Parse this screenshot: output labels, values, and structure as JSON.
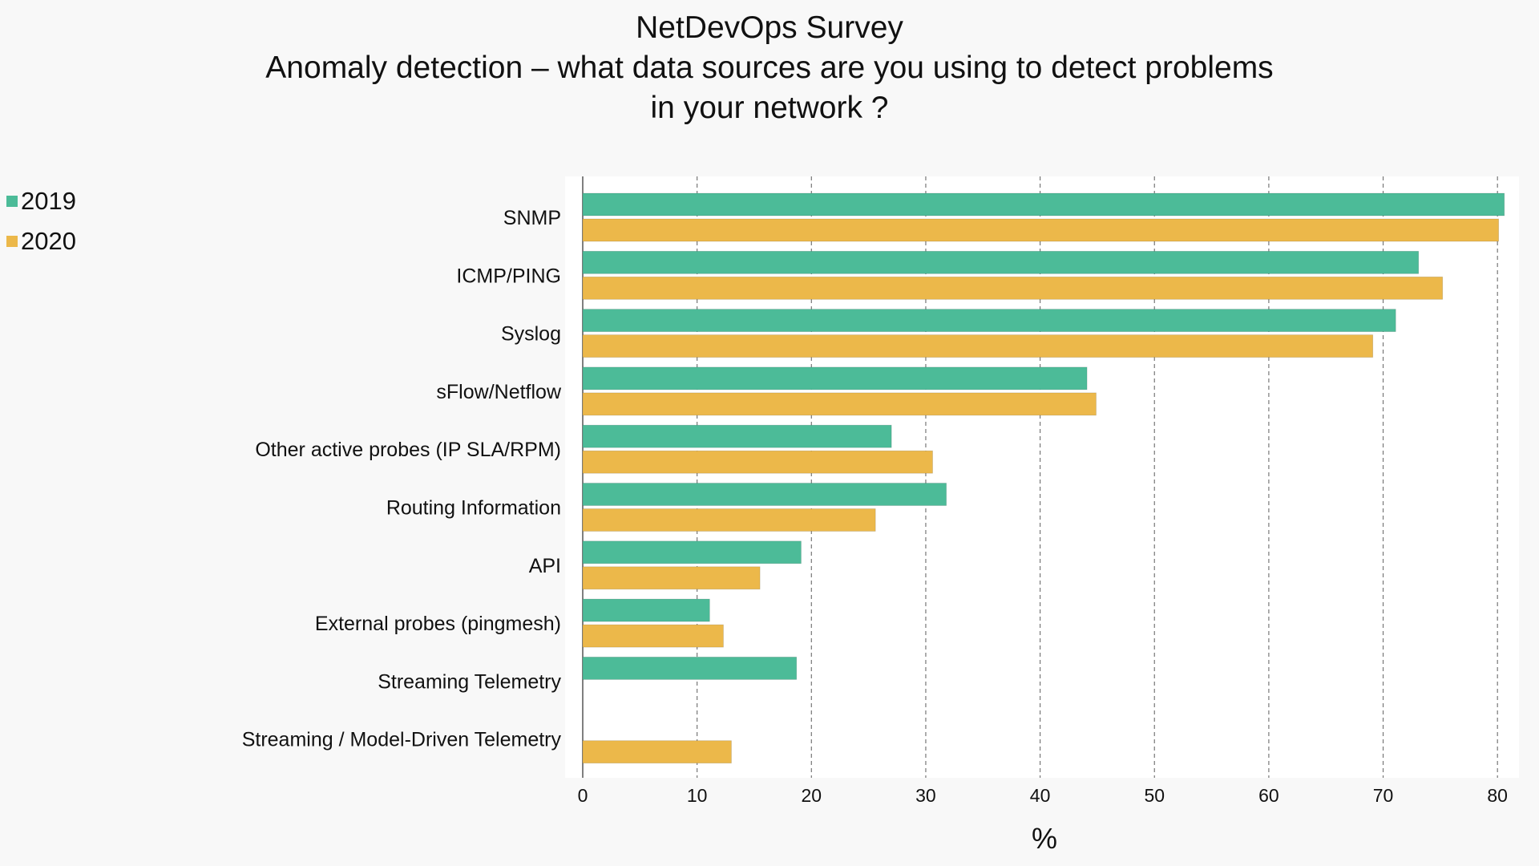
{
  "chart_data": {
    "type": "bar",
    "orientation": "horizontal",
    "title_lines": [
      "NetDevOps Survey",
      "Anomaly detection – what data sources are you using to detect problems",
      "in your network ?"
    ],
    "xlabel": "%",
    "ylabel": "",
    "xlim": [
      0,
      82
    ],
    "xticks": [
      0,
      10,
      20,
      30,
      40,
      50,
      60,
      70,
      80
    ],
    "grid": "vertical dashed",
    "legend_position": "top-left",
    "categories": [
      "SNMP",
      "ICMP/PING",
      "Syslog",
      "sFlow/Netflow",
      "Other active probes (IP SLA/RPM)",
      "Routing Information",
      "API",
      "External probes (pingmesh)",
      "Streaming Telemetry",
      "Streaming / Model-Driven Telemetry"
    ],
    "series": [
      {
        "name": "2019",
        "color": "#4cbb98",
        "values": [
          80.6,
          73.1,
          71.1,
          44.1,
          27.0,
          31.8,
          19.1,
          11.1,
          18.7,
          0
        ]
      },
      {
        "name": "2020",
        "color": "#ecb84a",
        "values": [
          80.1,
          75.2,
          69.1,
          44.9,
          30.6,
          25.6,
          15.5,
          12.3,
          0,
          13.0
        ]
      }
    ]
  }
}
